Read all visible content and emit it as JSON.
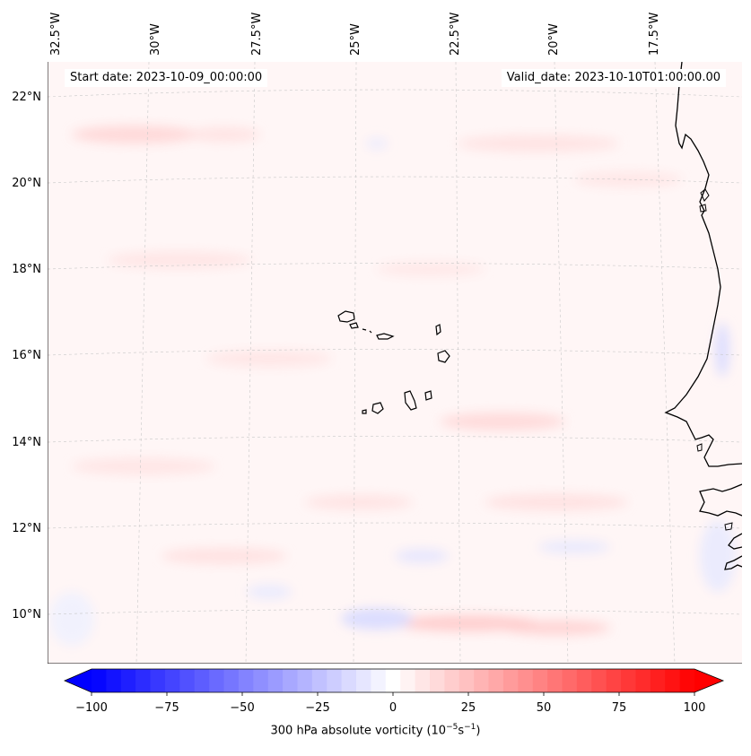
{
  "header": {
    "start_label": "Start date:",
    "start_value": "2023-10-09_00:00:00",
    "valid_label": "Valid_date:",
    "valid_value": "2023-10-10T01:00:00.00"
  },
  "map": {
    "longitude_labels": [
      "32.5°W",
      "30°W",
      "27.5°W",
      "25°W",
      "22.5°W",
      "20°W",
      "17.5°W"
    ],
    "latitude_labels": [
      "22°N",
      "20°N",
      "18°N",
      "16°N",
      "14°N",
      "12°N",
      "10°N"
    ],
    "field_description": "300 hPa absolute vorticity",
    "colors": {
      "negative": "#0000ff",
      "zero": "#ffffff",
      "positive": "#ff0000",
      "coastline": "#000000"
    }
  },
  "colorbar": {
    "ticks": [
      "−100",
      "−75",
      "−50",
      "−25",
      "0",
      "25",
      "50",
      "75",
      "100"
    ],
    "min": -100,
    "max": 100,
    "levels": 41,
    "extend": "both",
    "label_main": "300 hPa absolute vorticity (10",
    "label_exp1": "−5",
    "label_mid": "s",
    "label_exp2": "−1",
    "label_end": ")"
  }
}
